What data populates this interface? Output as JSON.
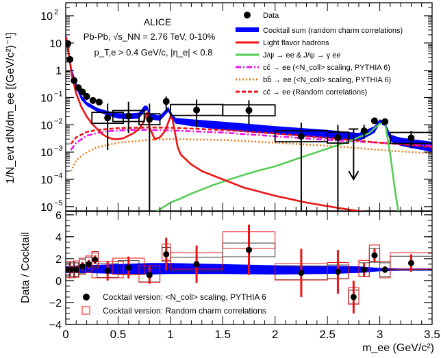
{
  "chart_data": [
    {
      "type": "scatter",
      "panel": "top",
      "title_lines": [
        "ALICE",
        "Pb-Pb, √s_NN = 2.76 TeV, 0-10%",
        "p_T,e > 0.4 GeV/c, |η_e| < 0.8"
      ],
      "ylabel": "1/N_evt dN/dm_ee [(GeV/c²)⁻¹]",
      "y_scale": "log",
      "ylim": [
        7e-06,
        300
      ],
      "xlim": [
        0,
        3.5
      ],
      "y_ticks": [
        {
          "value": 1e-05,
          "base": "10",
          "exp": "−5"
        },
        {
          "value": 0.0001,
          "base": "10",
          "exp": "−4"
        },
        {
          "value": 0.001,
          "base": "10",
          "exp": "−3"
        },
        {
          "value": 0.01,
          "base": "10",
          "exp": "−2"
        },
        {
          "value": 0.1,
          "base": "10",
          "exp": "−1"
        },
        {
          "value": 1,
          "base": "1",
          "exp": ""
        },
        {
          "value": 10,
          "base": "10",
          "exp": ""
        },
        {
          "value": 100,
          "base": "10",
          "exp": "2"
        }
      ],
      "legend": {
        "placement": "top-right",
        "entries": [
          {
            "label": "Data",
            "style": "marker",
            "color": "#000000"
          },
          {
            "label": "Cocktail sum (random charm correlations)",
            "style": "band",
            "color": "#0000ff"
          },
          {
            "label": "Light flavor hadrons",
            "style": "solid",
            "color": "#ee1111"
          },
          {
            "label": "J/ψ → ee  &  J/ψ → γ ee",
            "style": "solid",
            "color": "#55cc55"
          },
          {
            "label": "cc̄ → ee (<N_coll> scaling, PYTHIA 6)",
            "style": "dashdot",
            "color": "#ee11ee"
          },
          {
            "label": "bb̄ → ee (<N_coll> scaling, PYTHIA 6)",
            "style": "dotted",
            "color": "#ee7711"
          },
          {
            "label": "cc̄ → ee (Random correlations)",
            "style": "dashed",
            "color": "#ee1111"
          }
        ]
      },
      "data_points": [
        {
          "x": 0.02,
          "y": 9.5,
          "yerr": 0.3,
          "xw": 0.02
        },
        {
          "x": 0.04,
          "y": 2.5,
          "yerr": 0.1,
          "xw": 0.02
        },
        {
          "x": 0.08,
          "y": 0.42,
          "yerr": 0.05,
          "xw": 0.03
        },
        {
          "x": 0.12,
          "y": 0.23,
          "yerr": 0.04,
          "xw": 0.03
        },
        {
          "x": 0.16,
          "y": 0.16,
          "yerr": 0.04,
          "xw": 0.03
        },
        {
          "x": 0.2,
          "y": 0.11,
          "yerr": 0.03,
          "xw": 0.03
        },
        {
          "x": 0.26,
          "y": 0.078,
          "yerr": 0.02,
          "xw": 0.04
        },
        {
          "x": 0.32,
          "y": 0.068,
          "yerr": 0.015,
          "xw": 0.04
        },
        {
          "x": 0.4,
          "y": 0.018,
          "ylo": 0.0012,
          "yhi": 0.06,
          "xw": 0.15
        },
        {
          "x": 0.6,
          "y": 0.021,
          "ylo": 0.005,
          "yhi": 0.07,
          "xw": 0.15
        },
        {
          "x": 0.8,
          "y": 0.016,
          "ylo": 6e-06,
          "yhi": 0.06,
          "xw": 0.1
        },
        {
          "x": 0.96,
          "y": 0.072,
          "ylo": 0.03,
          "yhi": 0.11,
          "xw": 0.05
        },
        {
          "x": 1.25,
          "y": 0.035,
          "ylo": 0.008,
          "yhi": 0.085,
          "xw": 0.25
        },
        {
          "x": 1.75,
          "y": 0.034,
          "ylo": 0.01,
          "yhi": 0.08,
          "xw": 0.25
        },
        {
          "x": 2.25,
          "y": 0.0038,
          "ylo": 6e-06,
          "yhi": 0.012,
          "xw": 0.25
        },
        {
          "x": 2.6,
          "y": 0.0034,
          "ylo": 6e-06,
          "yhi": 0.01,
          "xw": 0.1
        },
        {
          "x": 2.75,
          "y": 0.007,
          "upper_limit": true,
          "xw": 0.05
        },
        {
          "x": 2.85,
          "y": 0.006,
          "ylo": 0.003,
          "yhi": 0.01,
          "xw": 0.05
        },
        {
          "x": 2.95,
          "y": 0.014,
          "ylo": 0.011,
          "yhi": 0.017,
          "xw": 0.05
        },
        {
          "x": 3.05,
          "y": 0.013,
          "ylo": 0.01,
          "yhi": 0.016,
          "xw": 0.05
        },
        {
          "x": 3.3,
          "y": 0.0033,
          "ylo": 0.0014,
          "yhi": 0.006,
          "xw": 0.2
        }
      ],
      "curves": {
        "cocktail_band": {
          "x": [
            0.005,
            0.03,
            0.06,
            0.1,
            0.15,
            0.2,
            0.3,
            0.4,
            0.5,
            0.6,
            0.7,
            0.75,
            0.78,
            0.8,
            0.9,
            0.98,
            1.02,
            1.05,
            1.2,
            1.5,
            2.0,
            2.5,
            2.8,
            2.95,
            3.0,
            3.05,
            3.1,
            3.15,
            3.2,
            3.3,
            3.4,
            3.5
          ],
          "lo": [
            12,
            3,
            0.7,
            0.22,
            0.08,
            0.05,
            0.03,
            0.022,
            0.017,
            0.016,
            0.017,
            0.03,
            0.035,
            0.016,
            0.014,
            0.03,
            0.016,
            0.011,
            0.009,
            0.0065,
            0.0045,
            0.0032,
            0.0025,
            0.005,
            0.011,
            0.009,
            0.0025,
            0.002,
            0.0017,
            0.0014,
            0.0012,
            0.001
          ],
          "hi": [
            22,
            5,
            1.1,
            0.34,
            0.12,
            0.07,
            0.042,
            0.032,
            0.027,
            0.026,
            0.028,
            0.05,
            0.05,
            0.026,
            0.022,
            0.045,
            0.024,
            0.018,
            0.016,
            0.013,
            0.009,
            0.0065,
            0.005,
            0.009,
            0.016,
            0.013,
            0.0045,
            0.0038,
            0.0034,
            0.003,
            0.0027,
            0.0024
          ]
        },
        "light_flavor": {
          "x": [
            0.005,
            0.03,
            0.06,
            0.1,
            0.15,
            0.2,
            0.25,
            0.3,
            0.35,
            0.4,
            0.45,
            0.5,
            0.55,
            0.6,
            0.65,
            0.7,
            0.74,
            0.78,
            0.8,
            0.85,
            0.9,
            0.95,
            1.0,
            1.02,
            1.04,
            1.07,
            1.1,
            1.2,
            1.3,
            1.5,
            1.7,
            2.0,
            2.3,
            2.6,
            2.9,
            3.1,
            3.3,
            3.5
          ],
          "y": [
            16,
            3.5,
            0.6,
            0.14,
            0.045,
            0.02,
            0.011,
            0.007,
            0.0045,
            0.0035,
            0.003,
            0.003,
            0.0032,
            0.004,
            0.005,
            0.007,
            0.012,
            0.03,
            0.008,
            0.003,
            0.0035,
            0.006,
            0.02,
            0.016,
            0.006,
            0.0015,
            0.0008,
            0.00035,
            0.0002,
            0.0001,
            5e-05,
            2.5e-05,
            1.4e-05,
            9e-06,
            6e-06,
            4e-06,
            3e-06,
            2.5e-06
          ]
        },
        "jpsi": {
          "x": [
            0.7,
            0.8,
            0.9,
            1.0,
            1.1,
            1.2,
            1.4,
            1.6,
            1.8,
            2.0,
            2.2,
            2.4,
            2.6,
            2.7,
            2.8,
            2.9,
            2.95,
            3.0,
            3.05,
            3.1,
            3.15,
            3.2
          ],
          "y": [
            2e-06,
            4.5e-06,
            8e-06,
            1.4e-05,
            2e-05,
            3e-05,
            6e-05,
            0.00011,
            0.00019,
            0.0003,
            0.00055,
            0.001,
            0.0018,
            0.0024,
            0.0035,
            0.005,
            0.0075,
            0.011,
            0.012,
            0.0008,
            3e-05,
            2e-06
          ]
        },
        "ccbar_ncoll": {
          "x": [
            0.05,
            0.1,
            0.2,
            0.3,
            0.4,
            0.6,
            0.8,
            1.0,
            1.5,
            2.0,
            2.5,
            3.0,
            3.5
          ],
          "y": [
            0.0012,
            0.0022,
            0.004,
            0.005,
            0.0058,
            0.0065,
            0.0065,
            0.0062,
            0.0052,
            0.0038,
            0.0028,
            0.0022,
            0.0017
          ]
        },
        "bbbar_ncoll": {
          "x": [
            0.05,
            0.1,
            0.2,
            0.3,
            0.5,
            0.8,
            1.0,
            1.5,
            2.0,
            2.5,
            3.0,
            3.3,
            3.5
          ],
          "y": [
            0.0002,
            0.0005,
            0.001,
            0.0015,
            0.0022,
            0.0028,
            0.003,
            0.0028,
            0.0022,
            0.0017,
            0.0012,
            0.001,
            0.0009
          ]
        },
        "ccbar_random": {
          "x": [
            0.05,
            0.1,
            0.2,
            0.3,
            0.5,
            0.8,
            1.0,
            1.5,
            2.0,
            2.5,
            3.0,
            3.3,
            3.5
          ],
          "y": [
            0.002,
            0.0035,
            0.0055,
            0.0065,
            0.0075,
            0.008,
            0.0078,
            0.0065,
            0.0048,
            0.0033,
            0.0022,
            0.0018,
            0.0015
          ]
        }
      }
    },
    {
      "type": "scatter",
      "panel": "bottom",
      "ylabel": "Data / Cocktail",
      "xlabel": "m_ee (GeV/c²)",
      "xlim": [
        0,
        3.5
      ],
      "ylim": [
        -4,
        6.3
      ],
      "x_ticks": [
        "0",
        "0.5",
        "1",
        "1.5",
        "2",
        "2.5",
        "3",
        "3.5"
      ],
      "x_tick_values": [
        0,
        0.5,
        1,
        1.5,
        2,
        2.5,
        3,
        3.5
      ],
      "y_ticks": [
        "−4",
        "−2",
        "0",
        "2",
        "4",
        "6"
      ],
      "y_tick_values": [
        -4,
        -2,
        0,
        2,
        4,
        6
      ],
      "legend": {
        "placement": "bottom-left",
        "entries": [
          {
            "label": "Cocktail version: <N_coll> scaling, PYTHIA 6",
            "style": "marker",
            "color": "#000000"
          },
          {
            "label": "Cocktail version: Random charm correlations",
            "style": "open-square",
            "color": "#ee1111"
          }
        ]
      },
      "band": {
        "x": [
          0.0,
          0.2,
          0.5,
          0.8,
          1.0,
          1.5,
          2.0,
          2.5,
          2.8,
          3.0,
          3.2,
          3.5
        ],
        "lo": [
          0.7,
          0.7,
          0.6,
          0.55,
          0.6,
          0.6,
          0.55,
          0.6,
          0.7,
          0.85,
          0.9,
          0.9
        ],
        "hi": [
          1.3,
          1.4,
          1.5,
          1.6,
          1.6,
          1.5,
          1.4,
          1.35,
          1.3,
          1.15,
          1.1,
          1.1
        ]
      },
      "ratio_ncoll": [
        {
          "x": 0.02,
          "y": 1.0,
          "err": 0.25,
          "xw": 0.02
        },
        {
          "x": 0.06,
          "y": 1.0,
          "err": 0.3,
          "xw": 0.02
        },
        {
          "x": 0.1,
          "y": 1.0,
          "err": 0.3,
          "xw": 0.02
        },
        {
          "x": 0.16,
          "y": 1.3,
          "err": 0.4,
          "xw": 0.03
        },
        {
          "x": 0.22,
          "y": 1.5,
          "err": 0.4,
          "xw": 0.03
        },
        {
          "x": 0.28,
          "y": 1.9,
          "err": 0.4,
          "xw": 0.03
        },
        {
          "x": 0.4,
          "y": 0.9,
          "err": 0.9,
          "xw": 0.1
        },
        {
          "x": 0.6,
          "y": 1.2,
          "err": 1.0,
          "xw": 0.1
        },
        {
          "x": 0.8,
          "y": 0.5,
          "err": 0.8,
          "xw": 0.1
        },
        {
          "x": 0.96,
          "y": 2.4,
          "err": 1.5,
          "xw": 0.04
        },
        {
          "x": 1.25,
          "y": 1.5,
          "err": 1.7,
          "xw": 0.25
        },
        {
          "x": 1.75,
          "y": 2.8,
          "err": 2.3,
          "xw": 0.25
        },
        {
          "x": 2.25,
          "y": 0.7,
          "err": 2.2,
          "xw": 0.25
        },
        {
          "x": 2.6,
          "y": 0.8,
          "err": 2.0,
          "xw": 0.1
        },
        {
          "x": 2.75,
          "y": -1.5,
          "err": 1.5,
          "xw": 0.05
        },
        {
          "x": 2.85,
          "y": 1.0,
          "err": 0.6,
          "xw": 0.05
        },
        {
          "x": 2.95,
          "y": 2.3,
          "err": 0.6,
          "xw": 0.05
        },
        {
          "x": 3.05,
          "y": 1.0,
          "err": 0.3,
          "xw": 0.05
        },
        {
          "x": 3.3,
          "y": 1.6,
          "err": 0.8,
          "xw": 0.2
        }
      ],
      "ratio_random": [
        {
          "x": 0.02,
          "y": 1.0,
          "xw": 0.02
        },
        {
          "x": 0.06,
          "y": 1.0,
          "xw": 0.02
        },
        {
          "x": 0.1,
          "y": 1.05,
          "xw": 0.02
        },
        {
          "x": 0.16,
          "y": 1.3,
          "xw": 0.03
        },
        {
          "x": 0.22,
          "y": 1.5,
          "xw": 0.03
        },
        {
          "x": 0.28,
          "y": 1.9,
          "xw": 0.03
        },
        {
          "x": 0.4,
          "y": 1.0,
          "xw": 0.15
        },
        {
          "x": 0.6,
          "y": 1.3,
          "xw": 0.15
        },
        {
          "x": 0.8,
          "y": 0.6,
          "xw": 0.1
        },
        {
          "x": 0.96,
          "y": 2.6,
          "xw": 0.04
        },
        {
          "x": 1.25,
          "y": 1.8,
          "xw": 0.25
        },
        {
          "x": 1.75,
          "y": 3.7,
          "xw": 0.25
        },
        {
          "x": 2.25,
          "y": 0.8,
          "xw": 0.25
        },
        {
          "x": 2.6,
          "y": 0.9,
          "xw": 0.1
        },
        {
          "x": 2.75,
          "y": -1.4,
          "xw": 0.05
        },
        {
          "x": 2.85,
          "y": 1.1,
          "xw": 0.05
        },
        {
          "x": 2.95,
          "y": 2.5,
          "xw": 0.05
        },
        {
          "x": 3.05,
          "y": 1.0,
          "xw": 0.05
        },
        {
          "x": 3.3,
          "y": 1.8,
          "xw": 0.2
        }
      ]
    }
  ]
}
